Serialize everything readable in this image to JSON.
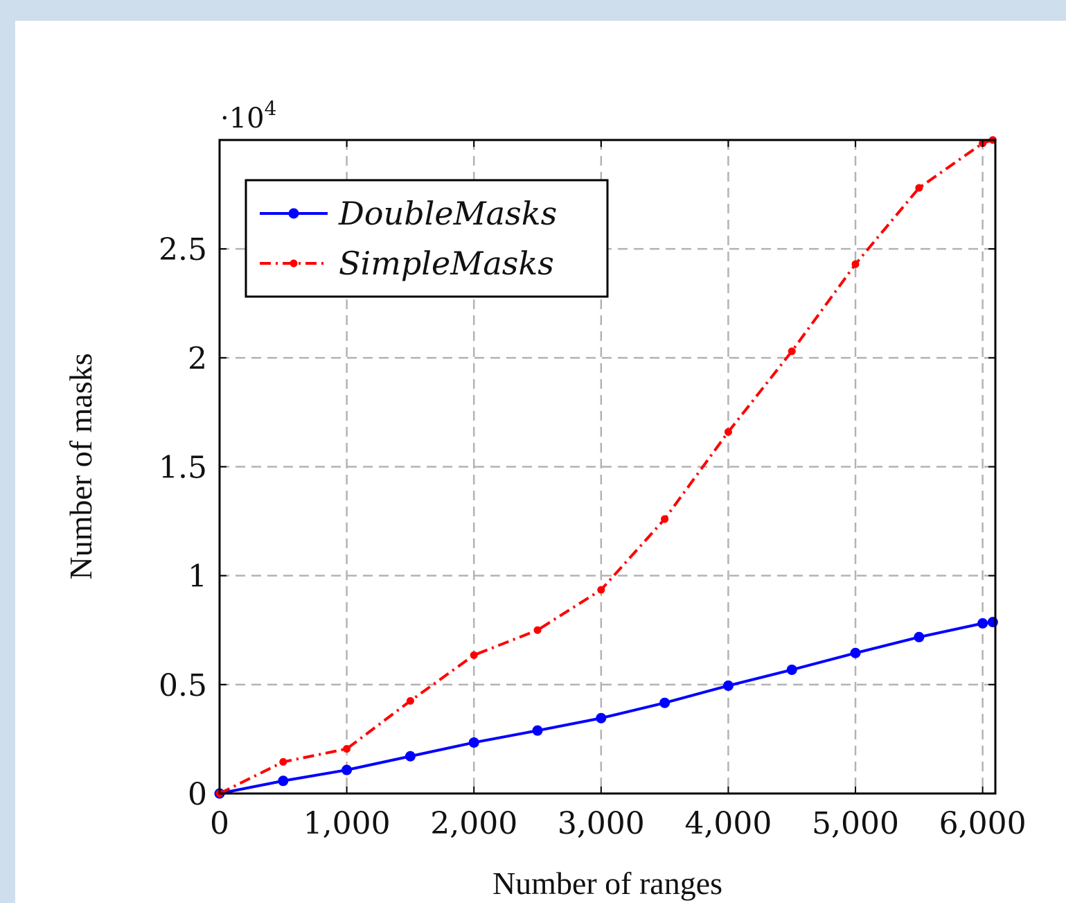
{
  "chart_data": {
    "type": "line",
    "xlabel": "Number of ranges",
    "ylabel": "Number of masks",
    "y_multiplier_base": "·10",
    "y_multiplier_exp": "4",
    "xlim": [
      0,
      6100
    ],
    "ylim": [
      0,
      3.0
    ],
    "x_ticks": [
      0,
      1000,
      2000,
      3000,
      4000,
      5000,
      6000
    ],
    "x_tick_labels": [
      "0",
      "1,000",
      "2,000",
      "3,000",
      "4,000",
      "5,000",
      "6,000"
    ],
    "y_ticks": [
      0,
      0.5,
      1,
      1.5,
      2,
      2.5
    ],
    "y_tick_labels": [
      "0",
      "0.5",
      "1",
      "1.5",
      "2",
      "2.5"
    ],
    "grid": true,
    "legend_position": "top-left",
    "series": [
      {
        "name": "DoubleMasks",
        "color": "#0000ff",
        "style": "solid",
        "x": [
          0,
          500,
          1000,
          1500,
          2000,
          2500,
          3000,
          3500,
          4000,
          4500,
          5000,
          5500,
          6000,
          6080
        ],
        "y": [
          0,
          0.058,
          0.108,
          0.171,
          0.234,
          0.289,
          0.346,
          0.416,
          0.495,
          0.568,
          0.645,
          0.718,
          0.781,
          0.787
        ]
      },
      {
        "name": "SimpleMasks",
        "color": "#ff0000",
        "style": "dashdot",
        "x": [
          0,
          500,
          1000,
          1500,
          2000,
          2500,
          3000,
          3500,
          4000,
          4500,
          5000,
          5500,
          6000,
          6080
        ],
        "y": [
          0,
          0.145,
          0.205,
          0.425,
          0.635,
          0.75,
          0.935,
          1.26,
          1.66,
          2.03,
          2.43,
          2.78,
          2.985,
          3.0
        ]
      }
    ]
  }
}
